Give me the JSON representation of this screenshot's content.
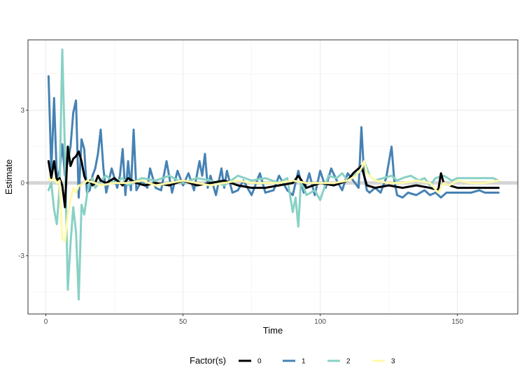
{
  "chart_data": {
    "type": "line",
    "xlabel": "Time",
    "ylabel": "Estimate",
    "xlim": [
      -6.5,
      172
    ],
    "ylim": [
      -5.4,
      5.9
    ],
    "xticks": [
      0,
      50,
      100,
      150
    ],
    "xtick_labels": [
      "0",
      "50",
      "100",
      "150"
    ],
    "yticks": [
      -3,
      0,
      3
    ],
    "ytick_labels": [
      "-3",
      "0",
      "3"
    ],
    "grid": true,
    "hline": 0,
    "legend": {
      "title": "Factor(s)",
      "position": "bottom"
    },
    "series": [
      {
        "name": "0",
        "color": "#000000",
        "x": [
          1,
          2,
          3,
          4,
          5,
          6,
          7,
          8,
          9,
          10,
          11,
          12,
          13,
          14,
          15,
          16,
          17,
          18,
          19,
          20,
          22,
          25,
          28,
          30,
          33,
          36,
          40,
          45,
          50,
          55,
          60,
          65,
          70,
          75,
          80,
          85,
          90,
          92,
          95,
          100,
          105,
          110,
          112,
          115,
          117,
          120,
          125,
          130,
          135,
          140,
          143,
          144,
          145,
          147,
          150,
          155,
          160,
          165
        ],
        "y": [
          0.9,
          0.2,
          0.9,
          0.1,
          0.2,
          -0.1,
          -1.0,
          1.5,
          0.7,
          1.0,
          1.1,
          1.3,
          0.9,
          0.3,
          0.0,
          0.1,
          -0.1,
          0.0,
          0.3,
          0.1,
          0.0,
          0.2,
          -0.1,
          0.2,
          0.0,
          -0.1,
          0.0,
          -0.1,
          0.1,
          -0.1,
          0.0,
          0.1,
          -0.1,
          -0.2,
          -0.2,
          -0.1,
          0.0,
          0.3,
          -0.2,
          0.0,
          -0.1,
          0.1,
          0.4,
          0.7,
          -0.1,
          -0.2,
          -0.1,
          -0.2,
          -0.1,
          -0.2,
          -0.3,
          0.4,
          0.0,
          -0.1,
          -0.2,
          -0.2,
          -0.2,
          -0.2
        ]
      },
      {
        "name": "1",
        "color": "#4682b4",
        "x": [
          1,
          2,
          3,
          4,
          5,
          6,
          7,
          8,
          9,
          10,
          11,
          12,
          13,
          14,
          15,
          16,
          17,
          18,
          19,
          20,
          21,
          22,
          24,
          26,
          27,
          28,
          29,
          30,
          31,
          32,
          33,
          35,
          37,
          38,
          40,
          42,
          44,
          46,
          48,
          50,
          52,
          54,
          56,
          57,
          58,
          59,
          60,
          62,
          64,
          65,
          66,
          68,
          70,
          72,
          75,
          78,
          80,
          83,
          85,
          88,
          90,
          92,
          94,
          96,
          98,
          100,
          102,
          104,
          106,
          108,
          110,
          112,
          114,
          115,
          116,
          117,
          118,
          120,
          122,
          124,
          126,
          127,
          128,
          130,
          132,
          135,
          138,
          140,
          142,
          144,
          146,
          148,
          150,
          152,
          155,
          158,
          160,
          162,
          165
        ],
        "y": [
          4.4,
          0.5,
          3.5,
          0.2,
          0.5,
          1.6,
          0.3,
          0.9,
          1.5,
          2.9,
          3.4,
          -0.6,
          1.8,
          1.4,
          -0.4,
          -0.3,
          0.3,
          0.6,
          1.2,
          2.2,
          0.6,
          -0.4,
          0.6,
          -0.2,
          0.3,
          1.4,
          -0.5,
          0.9,
          -0.3,
          2.2,
          -0.3,
          0.1,
          -0.2,
          0.6,
          -0.2,
          -0.3,
          0.9,
          -0.4,
          0.5,
          -0.1,
          0.4,
          -0.3,
          0.9,
          0.3,
          1.2,
          -0.2,
          0.3,
          -0.5,
          0.6,
          -0.2,
          0.5,
          -0.4,
          -0.3,
          0.1,
          -0.5,
          0.4,
          -0.4,
          -0.3,
          0.3,
          -0.3,
          -0.5,
          0.5,
          -0.4,
          0.4,
          -0.5,
          0.5,
          -0.2,
          0.6,
          0.1,
          -0.3,
          0.4,
          0.1,
          -0.2,
          2.3,
          0.3,
          -0.3,
          -0.4,
          -0.2,
          -0.4,
          0.2,
          1.5,
          0.1,
          -0.5,
          -0.6,
          -0.4,
          -0.5,
          -0.3,
          -0.5,
          -0.4,
          -0.6,
          -0.4,
          -0.4,
          -0.4,
          -0.4,
          -0.4,
          -0.3,
          -0.4,
          -0.4,
          -0.4
        ]
      },
      {
        "name": "2",
        "color": "#88d1c4",
        "x": [
          1,
          2,
          3,
          4,
          5,
          6,
          7,
          8,
          9,
          10,
          11,
          12,
          13,
          14,
          15,
          16,
          17,
          18,
          20,
          22,
          25,
          28,
          30,
          35,
          40,
          45,
          50,
          55,
          60,
          65,
          70,
          75,
          80,
          85,
          88,
          90,
          91,
          92,
          93,
          95,
          98,
          100,
          103,
          106,
          108,
          110,
          112,
          115,
          116,
          117,
          118,
          120,
          123,
          126,
          128,
          130,
          133,
          136,
          138,
          140,
          142,
          145,
          148,
          150,
          153,
          156,
          160,
          163,
          165
        ],
        "y": [
          -0.3,
          0.0,
          -1.1,
          -1.7,
          -0.2,
          5.5,
          1.2,
          -4.4,
          -2.5,
          -1.0,
          -2.0,
          -4.8,
          -0.9,
          -1.3,
          -0.5,
          0.1,
          0.2,
          -0.2,
          0.1,
          0.3,
          0.0,
          0.2,
          -0.1,
          0.2,
          0.1,
          0.3,
          0.0,
          0.2,
          0.1,
          -0.1,
          0.3,
          0.1,
          0.2,
          0.0,
          0.2,
          -1.2,
          -0.6,
          -1.8,
          0.1,
          -0.5,
          -0.3,
          -0.7,
          0.3,
          0.2,
          0.4,
          0.1,
          0.3,
          0.5,
          0.9,
          0.6,
          0.3,
          0.1,
          0.2,
          0.3,
          0.1,
          0.2,
          0.3,
          0.1,
          0.2,
          -0.1,
          0.2,
          0.3,
          0.1,
          0.2,
          0.2,
          0.2,
          0.2,
          0.2,
          0.1
        ]
      },
      {
        "name": "3",
        "color": "#fffaaa",
        "x": [
          1,
          2,
          3,
          4,
          5,
          6,
          7,
          8,
          9,
          10,
          11,
          12,
          13,
          14,
          15,
          18,
          20,
          25,
          30,
          35,
          40,
          45,
          50,
          55,
          60,
          65,
          70,
          75,
          80,
          85,
          90,
          95,
          100,
          105,
          110,
          113,
          115,
          116,
          117,
          120,
          125,
          130,
          135,
          140,
          143,
          145,
          147,
          150,
          155,
          160,
          165
        ],
        "y": [
          0.2,
          0.1,
          0.2,
          0.0,
          0.1,
          -2.3,
          -2.4,
          -1.3,
          -0.7,
          -0.2,
          -0.4,
          -0.1,
          -0.1,
          0.0,
          0.1,
          0.0,
          -0.1,
          0.0,
          0.0,
          0.1,
          -0.1,
          0.0,
          0.1,
          0.0,
          -0.1,
          0.0,
          0.1,
          0.0,
          0.0,
          0.0,
          0.1,
          0.0,
          0.0,
          0.0,
          0.1,
          0.3,
          0.6,
          0.9,
          0.4,
          0.1,
          0.0,
          0.0,
          0.1,
          0.0,
          -0.4,
          0.0,
          -0.1,
          0.1,
          0.0,
          0.0,
          0.1
        ]
      }
    ]
  }
}
